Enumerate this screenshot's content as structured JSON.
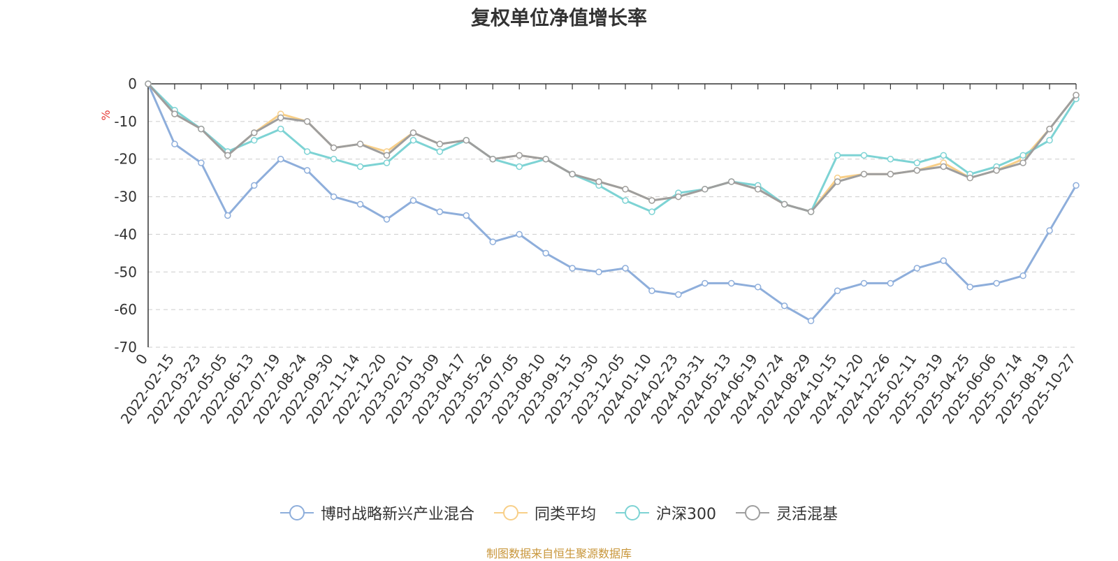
{
  "chart_data": {
    "type": "line",
    "title": "复权单位净值增长率",
    "ylabel": "%",
    "xlabel": "",
    "ylim": [
      -70,
      0
    ],
    "yticks": [
      0,
      -10,
      -20,
      -30,
      -40,
      -50,
      -60,
      -70
    ],
    "grid": true,
    "legend_position": "bottom",
    "x_tick_labels": [
      "0",
      "2022-02-15",
      "2022-03-23",
      "2022-05-05",
      "2022-06-13",
      "2022-07-19",
      "2022-08-24",
      "2022-09-30",
      "2022-11-14",
      "2022-12-20",
      "2023-02-01",
      "2023-03-09",
      "2023-04-17",
      "2023-05-26",
      "2023-07-05",
      "2023-08-10",
      "2023-09-15",
      "2023-10-30",
      "2023-12-05",
      "2024-01-10",
      "2024-02-23",
      "2024-03-31",
      "2024-05-13",
      "2024-06-19",
      "2024-07-24",
      "2024-08-29",
      "2024-10-15",
      "2024-11-20",
      "2024-12-26",
      "2025-02-11",
      "2025-03-19",
      "2025-04-25",
      "2025-06-06",
      "2025-07-14",
      "2025-08-19",
      "2025-10-27"
    ],
    "series": [
      {
        "name": "博时战略新兴产业混合",
        "color": "#8eaedb",
        "values": [
          0,
          -16,
          -21,
          -35,
          -27,
          -20,
          -23,
          -30,
          -32,
          -36,
          -31,
          -34,
          -35,
          -42,
          -40,
          -45,
          -49,
          -50,
          -49,
          -55,
          -56,
          -53,
          -53,
          -54,
          -59,
          -63,
          -55,
          -53,
          -53,
          -49,
          -47,
          -54,
          -53,
          -51,
          -39,
          -27
        ]
      },
      {
        "name": "同类平均",
        "color": "#f8cf88",
        "values": [
          0,
          -8,
          -12,
          -19,
          -13,
          -8,
          -10,
          -17,
          -16,
          -18,
          -13,
          -16,
          -15,
          -20,
          -19,
          -20,
          -24,
          -26,
          -28,
          -31,
          -30,
          -28,
          -26,
          -28,
          -32,
          -34,
          -25,
          -24,
          -24,
          -23,
          -21,
          -25,
          -23,
          -20,
          -12,
          -3
        ]
      },
      {
        "name": "沪深300",
        "color": "#7dd3d4",
        "values": [
          0,
          -7,
          -12,
          -18,
          -15,
          -12,
          -18,
          -20,
          -22,
          -21,
          -15,
          -18,
          -15,
          -20,
          -22,
          -20,
          -24,
          -27,
          -31,
          -34,
          -29,
          -28,
          -26,
          -27,
          -32,
          -34,
          -19,
          -19,
          -20,
          -21,
          -19,
          -24,
          -22,
          -19,
          -15,
          -4
        ]
      },
      {
        "name": "灵活混基",
        "color": "#9e9e9e",
        "values": [
          0,
          -8,
          -12,
          -19,
          -13,
          -9,
          -10,
          -17,
          -16,
          -19,
          -13,
          -16,
          -15,
          -20,
          -19,
          -20,
          -24,
          -26,
          -28,
          -31,
          -30,
          -28,
          -26,
          -28,
          -32,
          -34,
          -26,
          -24,
          -24,
          -23,
          -22,
          -25,
          -23,
          -21,
          -12,
          -3
        ]
      }
    ]
  },
  "legend": {
    "items": [
      "博时战略新兴产业混合",
      "同类平均",
      "沪深300",
      "灵活混基"
    ]
  },
  "source": "制图数据来自恒生聚源数据库"
}
